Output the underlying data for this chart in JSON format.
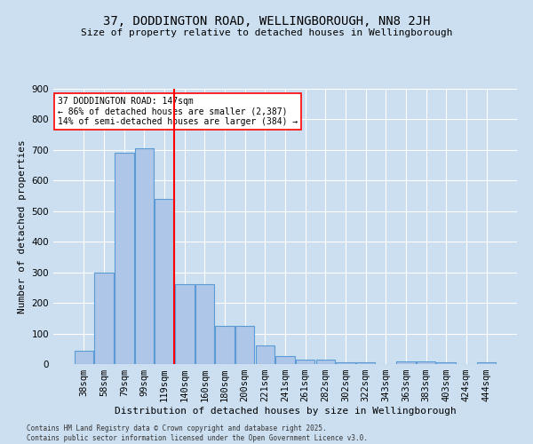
{
  "title_line1": "37, DODDINGTON ROAD, WELLINGBOROUGH, NN8 2JH",
  "title_line2": "Size of property relative to detached houses in Wellingborough",
  "xlabel": "Distribution of detached houses by size in Wellingborough",
  "ylabel": "Number of detached properties",
  "footnote": "Contains HM Land Registry data © Crown copyright and database right 2025.\nContains public sector information licensed under the Open Government Licence v3.0.",
  "annotation_title": "37 DODDINGTON ROAD: 147sqm",
  "annotation_line2": "← 86% of detached houses are smaller (2,387)",
  "annotation_line3": "14% of semi-detached houses are larger (384) →",
  "vline_x": 4.5,
  "bar_color": "#aec6e8",
  "bar_edge_color": "#5b9bd5",
  "vline_color": "red",
  "bg_color": "#ccdff0",
  "plot_bg_color": "#ccdff0",
  "categories": [
    "38sqm",
    "58sqm",
    "79sqm",
    "99sqm",
    "119sqm",
    "140sqm",
    "160sqm",
    "180sqm",
    "200sqm",
    "221sqm",
    "241sqm",
    "261sqm",
    "282sqm",
    "302sqm",
    "322sqm",
    "343sqm",
    "363sqm",
    "383sqm",
    "403sqm",
    "424sqm",
    "444sqm"
  ],
  "values": [
    45,
    300,
    690,
    705,
    540,
    260,
    260,
    125,
    125,
    60,
    25,
    15,
    15,
    5,
    5,
    0,
    10,
    10,
    5,
    0,
    5
  ],
  "ylim": [
    0,
    900
  ],
  "yticks": [
    0,
    100,
    200,
    300,
    400,
    500,
    600,
    700,
    800,
    900
  ],
  "title_fontsize": 10,
  "subtitle_fontsize": 8,
  "ylabel_fontsize": 8,
  "xlabel_fontsize": 8,
  "tick_fontsize": 7.5,
  "footnote_fontsize": 5.5,
  "annotation_fontsize": 7
}
